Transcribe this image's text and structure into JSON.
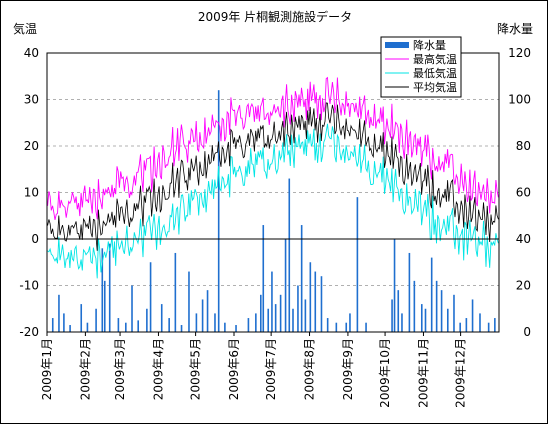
{
  "chart_data": {
    "type": "line+bar",
    "title": "2009年 片桐観測施設データ",
    "ylabel_left": "気温",
    "ylabel_right": "降水量",
    "ylim_left": [
      -20,
      40
    ],
    "ylim_right": [
      0,
      120
    ],
    "yticks_left": [
      "40",
      "30",
      "20",
      "10",
      "0",
      "-10",
      "-20"
    ],
    "yticks_right": [
      "120",
      "100",
      "80",
      "60",
      "40",
      "20",
      "0"
    ],
    "xticks": [
      "2009年1月",
      "2009年2月",
      "2009年3月",
      "2009年4月",
      "2009年5月",
      "2009年6月",
      "2009年7月",
      "2009年8月",
      "2009年9月",
      "2009年10月",
      "2009年11月",
      "2009年12月"
    ],
    "grid": true,
    "legend_position": "top-right",
    "legend": [
      {
        "name": "降水量",
        "color": "#1f6fcf",
        "kind": "bar"
      },
      {
        "name": "最高気温",
        "color": "#ff00ff",
        "kind": "line"
      },
      {
        "name": "最低気温",
        "color": "#00e5e5",
        "kind": "line"
      },
      {
        "name": "平均気温",
        "color": "#000000",
        "kind": "line"
      }
    ],
    "monthly_estimates": {
      "months": [
        "1月",
        "2月",
        "3月",
        "4月",
        "5月",
        "6月",
        "7月",
        "8月",
        "9月",
        "10月",
        "11月",
        "12月"
      ],
      "max_temp": [
        7,
        10,
        13,
        20,
        24,
        27,
        29,
        31,
        27,
        22,
        16,
        9
      ],
      "mean_temp": [
        1,
        3,
        6,
        12,
        17,
        20,
        24,
        25,
        21,
        15,
        9,
        3
      ],
      "min_temp": [
        -4,
        -3,
        0,
        5,
        11,
        15,
        20,
        21,
        16,
        9,
        3,
        -2
      ]
    },
    "precipitation_events": [
      {
        "date": "2009-01-05",
        "value": 6
      },
      {
        "date": "2009-01-10",
        "value": 16
      },
      {
        "date": "2009-01-14",
        "value": 8
      },
      {
        "date": "2009-01-19",
        "value": 3
      },
      {
        "date": "2009-01-28",
        "value": 12
      },
      {
        "date": "2009-02-02",
        "value": 4
      },
      {
        "date": "2009-02-09",
        "value": 10
      },
      {
        "date": "2009-02-14",
        "value": 36
      },
      {
        "date": "2009-02-16",
        "value": 22
      },
      {
        "date": "2009-02-20",
        "value": 38
      },
      {
        "date": "2009-02-27",
        "value": 6
      },
      {
        "date": "2009-03-05",
        "value": 4
      },
      {
        "date": "2009-03-10",
        "value": 20
      },
      {
        "date": "2009-03-15",
        "value": 5
      },
      {
        "date": "2009-03-22",
        "value": 10
      },
      {
        "date": "2009-03-25",
        "value": 30
      },
      {
        "date": "2009-04-03",
        "value": 12
      },
      {
        "date": "2009-04-09",
        "value": 6
      },
      {
        "date": "2009-04-14",
        "value": 34
      },
      {
        "date": "2009-04-19",
        "value": 3
      },
      {
        "date": "2009-04-25",
        "value": 26
      },
      {
        "date": "2009-05-01",
        "value": 8
      },
      {
        "date": "2009-05-06",
        "value": 14
      },
      {
        "date": "2009-05-10",
        "value": 18
      },
      {
        "date": "2009-05-16",
        "value": 8
      },
      {
        "date": "2009-05-19",
        "value": 104
      },
      {
        "date": "2009-05-24",
        "value": 4
      },
      {
        "date": "2009-06-02",
        "value": 3
      },
      {
        "date": "2009-06-12",
        "value": 6
      },
      {
        "date": "2009-06-18",
        "value": 8
      },
      {
        "date": "2009-06-22",
        "value": 16
      },
      {
        "date": "2009-06-24",
        "value": 46
      },
      {
        "date": "2009-06-28",
        "value": 10
      },
      {
        "date": "2009-07-01",
        "value": 26
      },
      {
        "date": "2009-07-04",
        "value": 12
      },
      {
        "date": "2009-07-08",
        "value": 16
      },
      {
        "date": "2009-07-12",
        "value": 40
      },
      {
        "date": "2009-07-15",
        "value": 66
      },
      {
        "date": "2009-07-18",
        "value": 10
      },
      {
        "date": "2009-07-22",
        "value": 20
      },
      {
        "date": "2009-07-25",
        "value": 46
      },
      {
        "date": "2009-07-28",
        "value": 14
      },
      {
        "date": "2009-08-01",
        "value": 30
      },
      {
        "date": "2009-08-05",
        "value": 26
      },
      {
        "date": "2009-08-10",
        "value": 24
      },
      {
        "date": "2009-08-15",
        "value": 6
      },
      {
        "date": "2009-08-22",
        "value": 4
      },
      {
        "date": "2009-08-30",
        "value": 4
      },
      {
        "date": "2009-09-02",
        "value": 8
      },
      {
        "date": "2009-09-08",
        "value": 58
      },
      {
        "date": "2009-09-15",
        "value": 4
      },
      {
        "date": "2009-10-06",
        "value": 14
      },
      {
        "date": "2009-10-08",
        "value": 40
      },
      {
        "date": "2009-10-11",
        "value": 18
      },
      {
        "date": "2009-10-14",
        "value": 8
      },
      {
        "date": "2009-10-20",
        "value": 34
      },
      {
        "date": "2009-10-24",
        "value": 22
      },
      {
        "date": "2009-10-30",
        "value": 12
      },
      {
        "date": "2009-11-02",
        "value": 10
      },
      {
        "date": "2009-11-07",
        "value": 32
      },
      {
        "date": "2009-11-11",
        "value": 22
      },
      {
        "date": "2009-11-15",
        "value": 18
      },
      {
        "date": "2009-11-20",
        "value": 10
      },
      {
        "date": "2009-11-25",
        "value": 16
      },
      {
        "date": "2009-11-30",
        "value": 4
      },
      {
        "date": "2009-12-05",
        "value": 6
      },
      {
        "date": "2009-12-10",
        "value": 14
      },
      {
        "date": "2009-12-16",
        "value": 8
      },
      {
        "date": "2009-12-23",
        "value": 4
      },
      {
        "date": "2009-12-28",
        "value": 6
      }
    ]
  }
}
